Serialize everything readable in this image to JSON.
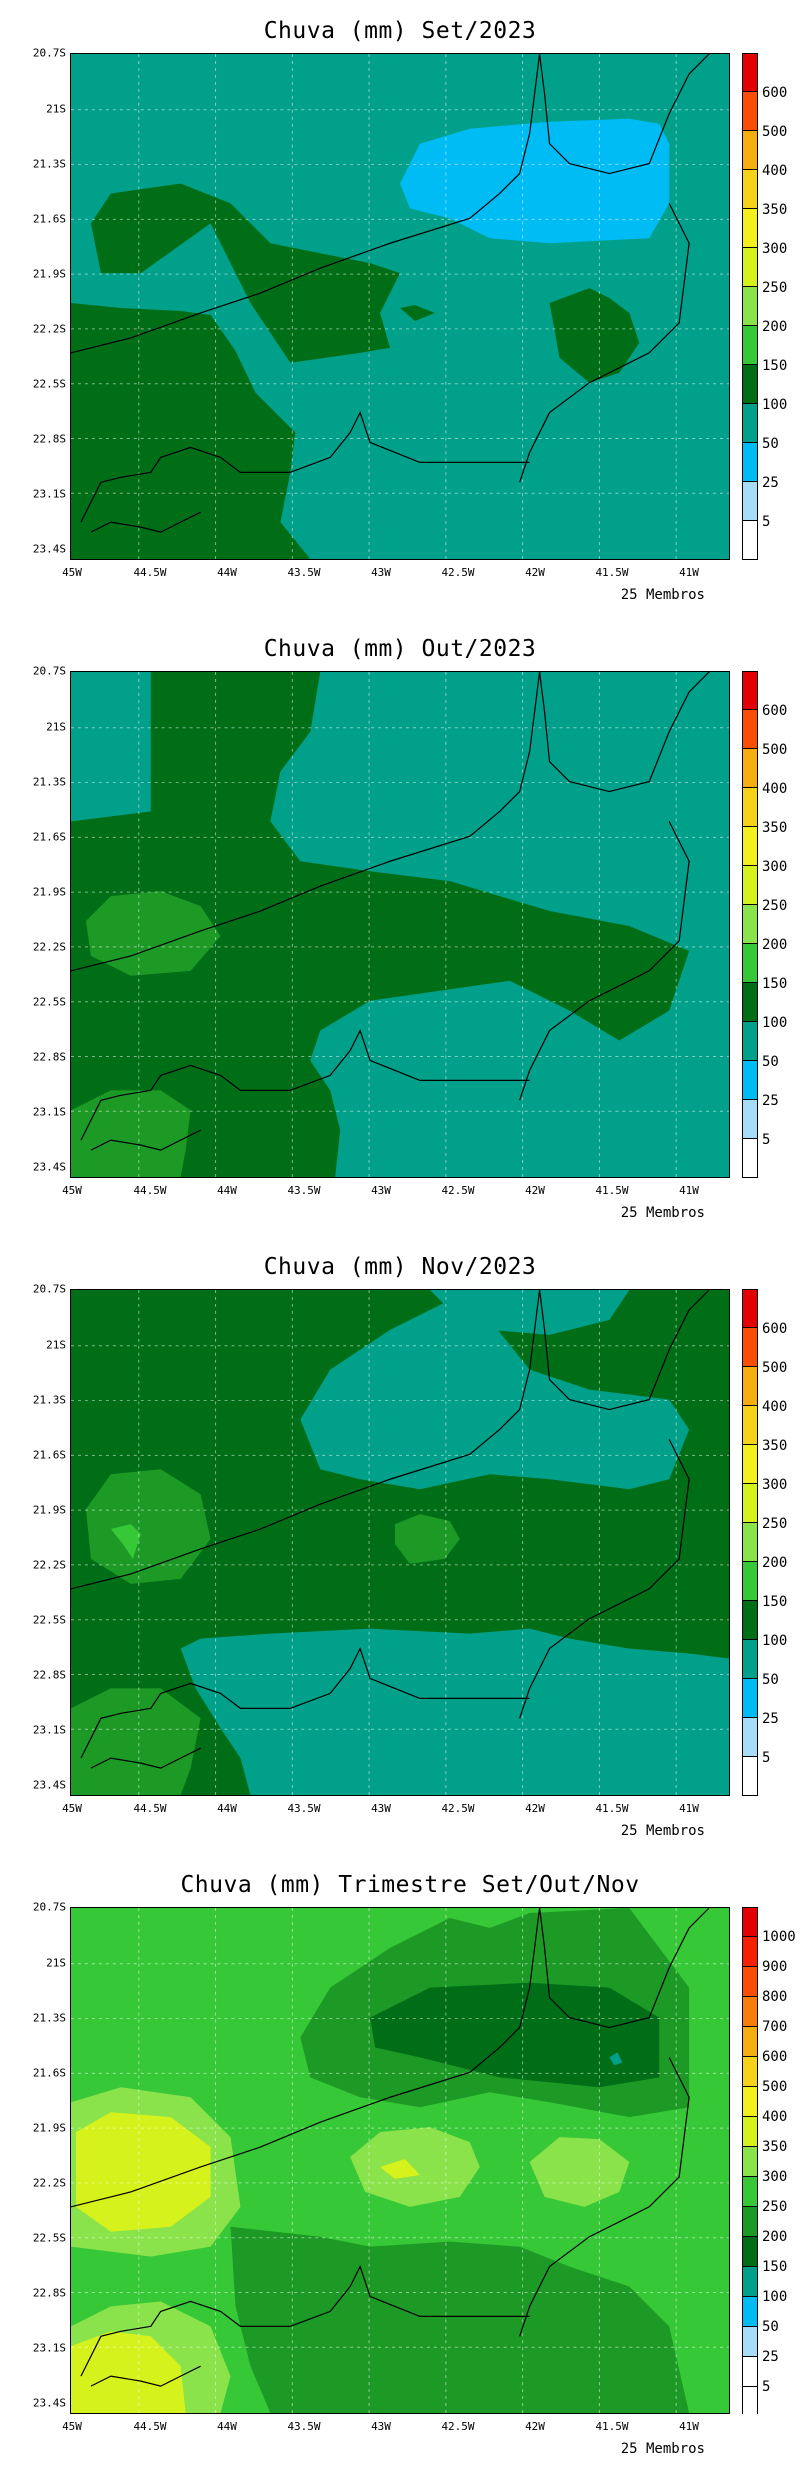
{
  "members_label": "25 Membros",
  "x_ticks": [
    "45W",
    "44.5W",
    "44W",
    "43.5W",
    "43W",
    "42.5W",
    "42W",
    "41.5W",
    "41W"
  ],
  "y_ticks": [
    "20.7S",
    "21S",
    "21.3S",
    "21.6S",
    "21.9S",
    "22.2S",
    "22.5S",
    "22.8S",
    "23.1S",
    "23.4S"
  ],
  "palette": {
    "v5": "#ffffff",
    "v25": "#a6dcf8",
    "v50": "#00bcf5",
    "v100": "#00a08a",
    "v150": "#006e16",
    "v200": "#1d9a26",
    "v250": "#37c837",
    "v300": "#8ae34a",
    "v350": "#d6f21c",
    "v400": "#f3f01e",
    "v500": "#f7d21a",
    "v600": "#f7ac10",
    "v700": "#f87e0c",
    "v800": "#f84e05",
    "v900": "#f61f00",
    "v1000": "#e30000"
  },
  "panels": [
    {
      "title": "Chuva (mm) Set/2023",
      "colorbar": {
        "labels": [
          "600",
          "500",
          "400",
          "350",
          "300",
          "250",
          "200",
          "150",
          "100",
          "50",
          "25",
          "5"
        ],
        "colors": [
          "#e30000",
          "#f84e05",
          "#f7ac10",
          "#f7d21a",
          "#f3f01e",
          "#d6f21c",
          "#8ae34a",
          "#37c837",
          "#1d9a26",
          "#006e16",
          "#00a08a",
          "#00bcf5",
          "#a6dcf8",
          "#ffffff"
        ]
      }
    },
    {
      "title": "Chuva (mm) Out/2023",
      "colorbar": {
        "labels": [
          "600",
          "500",
          "400",
          "350",
          "300",
          "250",
          "200",
          "150",
          "100",
          "50",
          "25",
          "5"
        ],
        "colors": [
          "#e30000",
          "#f84e05",
          "#f7ac10",
          "#f7d21a",
          "#f3f01e",
          "#d6f21c",
          "#8ae34a",
          "#37c837",
          "#1d9a26",
          "#006e16",
          "#00a08a",
          "#00bcf5",
          "#a6dcf8",
          "#ffffff"
        ]
      }
    },
    {
      "title": "Chuva (mm) Nov/2023",
      "colorbar": {
        "labels": [
          "600",
          "500",
          "400",
          "350",
          "300",
          "250",
          "200",
          "150",
          "100",
          "50",
          "25",
          "5"
        ],
        "colors": [
          "#e30000",
          "#f84e05",
          "#f7ac10",
          "#f7d21a",
          "#f3f01e",
          "#d6f21c",
          "#8ae34a",
          "#37c837",
          "#1d9a26",
          "#006e16",
          "#00a08a",
          "#00bcf5",
          "#a6dcf8",
          "#ffffff"
        ]
      }
    },
    {
      "title": "Chuva (mm) Trimestre Set/Out/Nov",
      "colorbar": {
        "labels": [
          "1000",
          "900",
          "800",
          "700",
          "600",
          "500",
          "400",
          "350",
          "300",
          "250",
          "200",
          "150",
          "100",
          "50",
          "25",
          "5"
        ],
        "colors": [
          "#e30000",
          "#f61f00",
          "#f84e05",
          "#f87e0c",
          "#f7ac10",
          "#f7d21a",
          "#f3f01e",
          "#d6f21c",
          "#8ae34a",
          "#37c837",
          "#1d9a26",
          "#006e16",
          "#00a08a",
          "#00bcf5",
          "#a6dcf8",
          "#ffffff",
          "#ffffff"
        ]
      }
    }
  ]
}
